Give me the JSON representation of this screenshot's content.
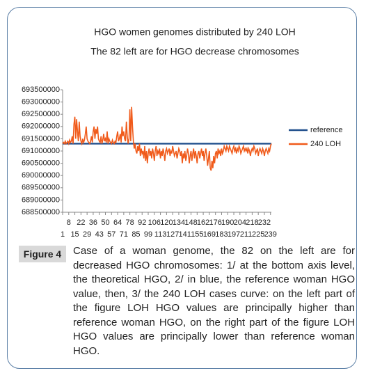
{
  "chart_data": {
    "type": "line",
    "title": "HGO women genomes distributed by 240 LOH",
    "subtitle": "The 82 left are for HGO decrease chromosomes",
    "x": [
      1,
      2,
      3,
      4,
      5,
      6,
      7,
      8,
      9,
      10,
      11,
      12,
      13,
      14,
      15,
      16,
      17,
      18,
      19,
      20,
      21,
      22,
      23,
      24,
      25,
      26,
      27,
      28,
      29,
      30,
      31,
      32,
      33,
      34,
      35,
      36,
      37,
      38,
      39,
      40,
      41,
      42,
      43,
      44,
      45,
      46,
      47,
      48,
      49,
      50,
      51,
      52,
      53,
      54,
      55,
      56,
      57,
      58,
      59,
      60,
      61,
      62,
      63,
      64,
      65,
      66,
      67,
      68,
      69,
      70,
      71,
      72,
      73,
      74,
      75,
      76,
      77,
      78,
      79,
      80,
      81,
      82,
      83,
      84,
      85,
      86,
      87,
      88,
      89,
      90,
      91,
      92,
      93,
      94,
      95,
      96,
      97,
      98,
      99,
      100,
      101,
      102,
      103,
      104,
      105,
      106,
      107,
      108,
      109,
      110,
      111,
      112,
      113,
      114,
      115,
      116,
      117,
      118,
      119,
      120,
      121,
      122,
      123,
      124,
      125,
      126,
      127,
      128,
      129,
      130,
      131,
      132,
      133,
      134,
      135,
      136,
      137,
      138,
      139,
      140,
      141,
      142,
      143,
      144,
      145,
      146,
      147,
      148,
      149,
      150,
      151,
      152,
      153,
      154,
      155,
      156,
      157,
      158,
      159,
      160,
      161,
      162,
      163,
      164,
      165,
      166,
      167,
      168,
      169,
      170,
      171,
      172,
      173,
      174,
      175,
      176,
      177,
      178,
      179,
      180,
      181,
      182,
      183,
      184,
      185,
      186,
      187,
      188,
      189,
      190,
      191,
      192,
      193,
      194,
      195,
      196,
      197,
      198,
      199,
      200,
      201,
      202,
      203,
      204,
      205,
      206,
      207,
      208,
      209,
      210,
      211,
      212,
      213,
      214,
      215,
      216,
      217,
      218,
      219,
      220,
      221,
      222,
      223,
      224,
      225,
      226,
      227,
      228,
      229,
      230,
      231,
      232,
      233,
      234,
      235,
      236,
      237,
      238,
      239,
      240
    ],
    "series": [
      {
        "name": "reference",
        "color": "#1f4e8c",
        "x": [
          1,
          240
        ],
        "values": [
          691300000,
          691300000
        ]
      },
      {
        "name": "240 LOH",
        "color": "#f05a1a",
        "values": [
          691300000,
          691350000,
          691300000,
          691400000,
          691300000,
          691350000,
          691400000,
          691300000,
          691450000,
          691350000,
          691400000,
          691600000,
          691300000,
          692100000,
          692400000,
          691500000,
          692300000,
          691800000,
          691400000,
          692200000,
          691600000,
          691400000,
          691300000,
          691500000,
          691350000,
          691450000,
          691700000,
          692000000,
          691500000,
          691400000,
          691350000,
          691300000,
          691400000,
          691600000,
          691350000,
          691800000,
          692000000,
          691500000,
          691900000,
          691700000,
          692000000,
          691500000,
          691400000,
          691350000,
          691600000,
          691300000,
          691450000,
          691700000,
          691400000,
          691500000,
          691350000,
          691800000,
          691300000,
          691500000,
          691400000,
          691350000,
          691300000,
          691450000,
          691350000,
          691300000,
          691400000,
          691350000,
          691600000,
          691800000,
          691400000,
          691500000,
          691700000,
          691350000,
          692000000,
          691600000,
          691800000,
          691500000,
          691400000,
          692200000,
          691600000,
          691300000,
          691500000,
          692700000,
          691400000,
          692800000,
          692000000,
          691400000,
          691100000,
          691300000,
          691000000,
          690900000,
          691200000,
          691000000,
          691300000,
          690800000,
          691100000,
          690900000,
          691000000,
          690700000,
          691200000,
          690600000,
          691000000,
          690500000,
          690900000,
          691100000,
          690800000,
          691000000,
          690700000,
          691100000,
          690900000,
          690600000,
          691000000,
          691200000,
          690800000,
          691000000,
          690900000,
          691100000,
          690700000,
          691000000,
          690800000,
          691100000,
          690900000,
          690600000,
          691000000,
          691100000,
          690900000,
          691000000,
          691100000,
          690800000,
          691000000,
          690900000,
          691200000,
          691000000,
          690800000,
          690900000,
          691000000,
          690700000,
          690900000,
          691100000,
          691000000,
          690800000,
          691000000,
          690500000,
          690900000,
          690700000,
          691000000,
          690600000,
          690800000,
          691100000,
          690900000,
          690500000,
          690800000,
          691000000,
          690600000,
          690900000,
          691100000,
          690700000,
          691000000,
          690800000,
          690500000,
          690900000,
          691000000,
          690700000,
          690900000,
          691100000,
          690800000,
          691000000,
          690600000,
          690900000,
          691100000,
          690800000,
          690400000,
          690700000,
          691000000,
          690300000,
          690200000,
          690600000,
          690300000,
          690800000,
          690500000,
          690900000,
          691000000,
          690700000,
          691100000,
          690900000,
          691000000,
          690800000,
          691100000,
          690900000,
          691000000,
          691200000,
          691100000,
          691000000,
          691200000,
          691100000,
          691000000,
          691200000,
          691100000,
          691000000,
          690900000,
          691100000,
          691200000,
          691000000,
          691100000,
          690900000,
          691100000,
          691000000,
          691200000,
          691100000,
          690900000,
          691000000,
          691100000,
          691200000,
          691000000,
          691100000,
          691000000,
          691100000,
          690900000,
          691100000,
          691000000,
          690800000,
          691000000,
          691100000,
          691000000,
          691200000,
          691100000,
          690900000,
          691000000,
          691100000,
          690800000,
          691000000,
          691100000,
          691000000,
          690900000,
          691100000,
          691000000,
          690800000,
          691000000,
          691100000,
          691000000,
          690900000,
          691100000,
          691000000,
          691200000,
          691300000
        ]
      }
    ],
    "xlim": [
      1,
      240
    ],
    "xticks": [
      1,
      8,
      15,
      22,
      29,
      36,
      43,
      50,
      57,
      64,
      71,
      78,
      85,
      92,
      99,
      106,
      113,
      120,
      127,
      134,
      141,
      148,
      155,
      162,
      169,
      176,
      183,
      190,
      197,
      204,
      211,
      218,
      225,
      232,
      239
    ],
    "ylim": [
      688500000,
      693500000
    ],
    "yticks": [
      688500000,
      689000000,
      689500000,
      690000000,
      690500000,
      691000000,
      691500000,
      692000000,
      692500000,
      693000000,
      693500000
    ],
    "legend": "right",
    "figure_label": "Figure 4",
    "caption": "Case of a woman genome, the 82 on the left are for decreased HGO chromosomes: 1/ at the bottom axis level, the theoretical HGO, 2/ in blue, the reference woman HGO value, then, 3/ the 240 LOH cases curve: on the left part of the figure LOH HGO values are principally higher than reference woman HGO, on the right part of the figure LOH HGO values are principally lower than reference woman HGO."
  }
}
